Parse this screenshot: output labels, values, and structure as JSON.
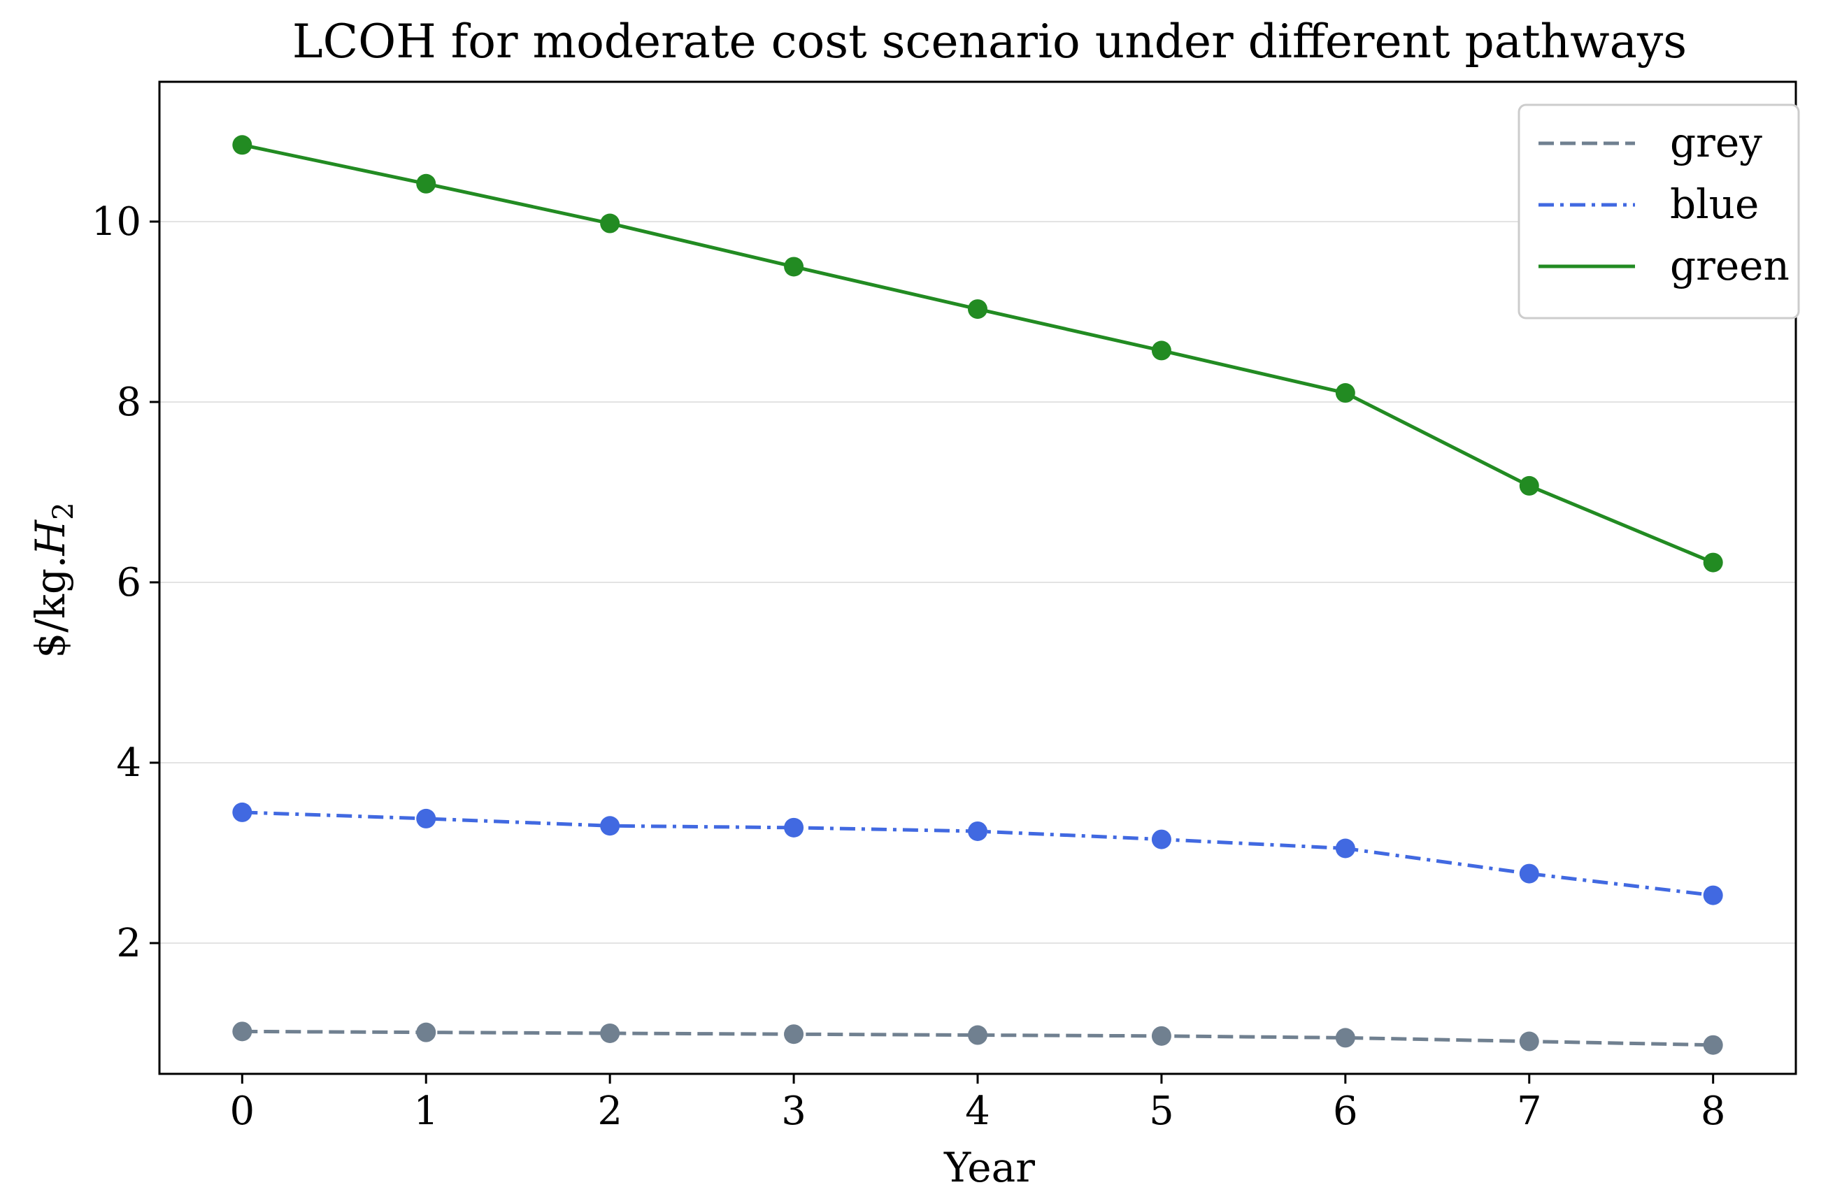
{
  "chart_data": {
    "type": "line",
    "title": "LCOH for moderate cost scenario under different pathways",
    "xlabel": "Year",
    "ylabel_prefix": "$/kg.",
    "ylabel_var": "H",
    "ylabel_sub": "2",
    "x": [
      0,
      1,
      2,
      3,
      4,
      5,
      6,
      7,
      8
    ],
    "xlim": [
      -0.45,
      8.45
    ],
    "ylim": [
      0.55,
      11.55
    ],
    "xticks": [
      0,
      1,
      2,
      3,
      4,
      5,
      6,
      7,
      8
    ],
    "yticks": [
      2,
      4,
      6,
      8,
      10
    ],
    "grid": "horizontal",
    "legend_position": "top-right",
    "series": [
      {
        "name": "grey",
        "color": "#708090",
        "style": "dashed",
        "values": [
          1.02,
          1.01,
          1.0,
          0.99,
          0.98,
          0.97,
          0.95,
          0.91,
          0.87
        ]
      },
      {
        "name": "blue",
        "color": "#4169e1",
        "style": "dashdot",
        "values": [
          3.45,
          3.38,
          3.3,
          3.28,
          3.24,
          3.15,
          3.05,
          2.77,
          2.53
        ]
      },
      {
        "name": "green",
        "color": "#228b22",
        "style": "solid",
        "values": [
          10.85,
          10.42,
          9.98,
          9.5,
          9.03,
          8.57,
          8.1,
          7.07,
          6.22
        ]
      }
    ]
  }
}
